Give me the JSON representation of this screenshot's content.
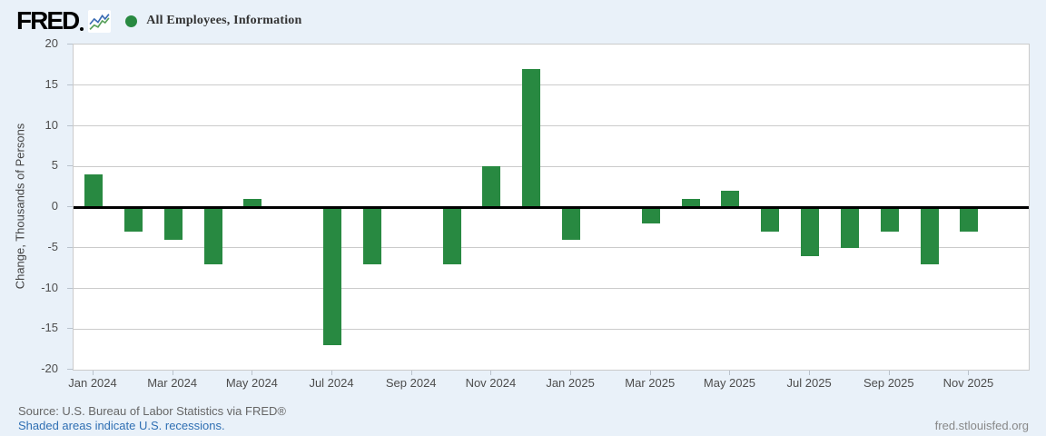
{
  "header": {
    "logo_text": "FRED",
    "legend": {
      "marker_color": "#288941",
      "label": "All Employees, Information"
    }
  },
  "chart_data": {
    "type": "bar",
    "title": "All Employees, Information",
    "ylabel": "Change, Thousands of Persons",
    "ylim": [
      -20,
      20
    ],
    "ytick_step": 5,
    "yticks": [
      20,
      15,
      10,
      5,
      0,
      -5,
      -10,
      -15,
      -20
    ],
    "grid": true,
    "bar_color": "#288941",
    "categories": [
      "Jan 2024",
      "Feb 2024",
      "Mar 2024",
      "Apr 2024",
      "May 2024",
      "Jun 2024",
      "Jul 2024",
      "Aug 2024",
      "Sep 2024",
      "Oct 2024",
      "Nov 2024",
      "Dec 2024",
      "Jan 2025",
      "Feb 2025",
      "Mar 2025",
      "Apr 2025",
      "May 2025",
      "Jun 2025",
      "Jul 2025",
      "Aug 2025",
      "Sep 2025",
      "Oct 2025",
      "Nov 2025"
    ],
    "values": [
      4,
      -3,
      -4,
      -7,
      1,
      0,
      -17,
      -7,
      0,
      -7,
      5,
      17,
      -4,
      0,
      -2,
      1,
      2,
      -3,
      -6,
      -5,
      -3,
      -7,
      -3
    ],
    "xtick_labels": [
      "Jan 2024",
      "Mar 2024",
      "May 2024",
      "Jul 2024",
      "Sep 2024",
      "Nov 2024",
      "Jan 2025",
      "Mar 2025",
      "May 2025",
      "Jul 2025",
      "Sep 2025",
      "Nov 2025"
    ]
  },
  "footer": {
    "source": "Source: U.S. Bureau of Labor Statistics via FRED®",
    "recession_note": "Shaded areas indicate U.S. recessions.",
    "site": "fred.stlouisfed.org"
  }
}
